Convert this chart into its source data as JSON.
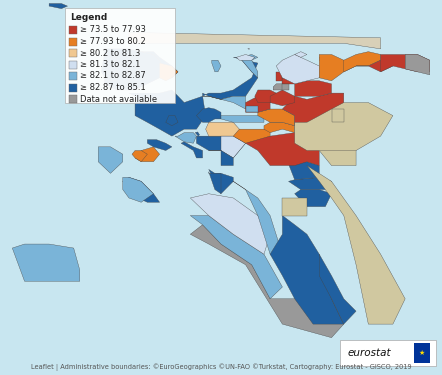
{
  "background_color": "#cde8f0",
  "sea_color": "#c8e6f0",
  "land_bg": "#e8e8e8",
  "legend_title": "Legend",
  "legend_items": [
    {
      "label": "≥ 73.5 to 77.93",
      "color": "#c0392b"
    },
    {
      "label": "≥ 77.93 to 80.2",
      "color": "#e67e22"
    },
    {
      "label": "≥ 80.2 to 81.3",
      "color": "#f0c891"
    },
    {
      "label": "≥ 81.3 to 82.1",
      "color": "#d0dff0"
    },
    {
      "label": "≥ 82.1 to 82.87",
      "color": "#7ab4d8"
    },
    {
      "label": "≥ 82.87 to 85.1",
      "color": "#2060a0"
    },
    {
      "label": "Data not available",
      "color": "#999999"
    }
  ],
  "footer_text": "Leaflet | Administrative boundaries: ©EuroGeographics ©UN-FAO ©Turkstat, Cartography: Eurostat - GISCO, 2019",
  "eurostat_text": "eurostat",
  "eurostat_icon_color": "#003399",
  "legend_box_color": "#ffffff",
  "legend_fontsize": 6.0,
  "footer_fontsize": 4.8,
  "fig_width": 4.42,
  "fig_height": 3.75,
  "dpi": 100
}
